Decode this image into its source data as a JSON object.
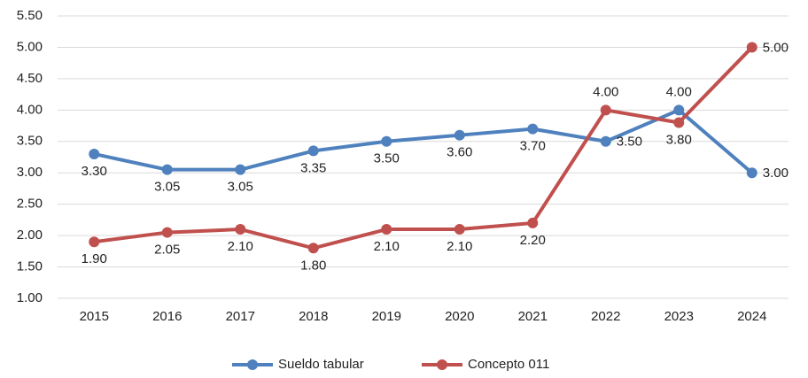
{
  "chart_data": {
    "type": "line",
    "categories": [
      "2015",
      "2016",
      "2017",
      "2018",
      "2019",
      "2020",
      "2021",
      "2022",
      "2023",
      "2024"
    ],
    "series": [
      {
        "name": "Sueldo tabular",
        "color": "#4e81bd",
        "values": [
          3.3,
          3.05,
          3.05,
          3.35,
          3.5,
          3.6,
          3.7,
          3.5,
          4.0,
          3.0
        ],
        "value_labels": [
          "3.30",
          "3.05",
          "3.05",
          "3.35",
          "3.50",
          "3.60",
          "3.70",
          "3.50",
          "4.00",
          "3.00"
        ]
      },
      {
        "name": "Concepto 011",
        "color": "#c0504d",
        "values": [
          1.9,
          2.05,
          2.1,
          1.8,
          2.1,
          2.1,
          2.2,
          4.0,
          3.8,
          5.0
        ],
        "value_labels": [
          "1.90",
          "2.05",
          "2.10",
          "1.80",
          "2.10",
          "2.10",
          "2.20",
          "4.00",
          "3.80",
          "5.00"
        ]
      }
    ],
    "ylim": [
      1.0,
      5.5
    ],
    "yticks": [
      {
        "value": 1.0,
        "label": "1.00"
      },
      {
        "value": 1.5,
        "label": "1.50"
      },
      {
        "value": 2.0,
        "label": "2.00"
      },
      {
        "value": 2.5,
        "label": "2.50"
      },
      {
        "value": 3.0,
        "label": "3.00"
      },
      {
        "value": 3.5,
        "label": "3.50"
      },
      {
        "value": 4.0,
        "label": "4.00"
      },
      {
        "value": 4.5,
        "label": "4.50"
      },
      {
        "value": 5.0,
        "label": "5.00"
      },
      {
        "value": 5.5,
        "label": "5.50"
      }
    ],
    "grid": true,
    "legend": "bottom"
  }
}
